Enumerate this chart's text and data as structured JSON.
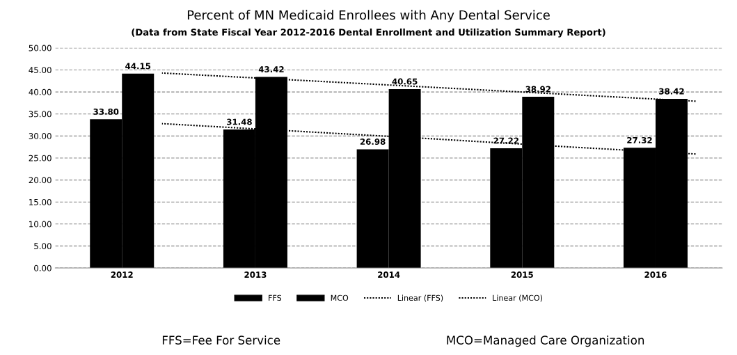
{
  "chart_data": {
    "type": "bar",
    "title": "Percent of MN Medicaid Enrollees with Any Dental Service",
    "subtitle": "(Data from State Fiscal Year 2012-2016 Dental Enrollment and Utilization Summary Report)",
    "categories": [
      "2012",
      "2013",
      "2014",
      "2015",
      "2016"
    ],
    "series": [
      {
        "name": "FFS",
        "color": "#000000",
        "values": [
          33.8,
          31.48,
          26.98,
          27.22,
          27.32
        ],
        "value_labels": [
          "33.80",
          "31.48",
          "26.98",
          "27.22",
          "27.32"
        ]
      },
      {
        "name": "MCO",
        "color": "#000000",
        "values": [
          44.15,
          43.42,
          40.65,
          38.92,
          38.42
        ],
        "value_labels": [
          "44.15",
          "43.42",
          "40.65",
          "38.92",
          "38.42"
        ]
      },
      {
        "name": "Linear (FFS)",
        "type": "line",
        "line_style": "dotted",
        "color": "#000000",
        "values": [
          32.8,
          31.1,
          29.4,
          27.6,
          25.9
        ]
      },
      {
        "name": "Linear (MCO)",
        "type": "line",
        "line_style": "dotted",
        "color": "#000000",
        "values": [
          44.3,
          42.7,
          41.1,
          39.5,
          37.9
        ]
      }
    ],
    "ylim": [
      0,
      50
    ],
    "yticks": [
      {
        "value": 0,
        "label": "0.00"
      },
      {
        "value": 5,
        "label": "5.00"
      },
      {
        "value": 10,
        "label": "10.00"
      },
      {
        "value": 15,
        "label": "15.00"
      },
      {
        "value": 20,
        "label": "20.00"
      },
      {
        "value": 25,
        "label": "25.00"
      },
      {
        "value": 30,
        "label": "30.00"
      },
      {
        "value": 35,
        "label": "35.00"
      },
      {
        "value": 40,
        "label": "40.00"
      },
      {
        "value": 45,
        "label": "45.00"
      },
      {
        "value": 50,
        "label": "50.00"
      }
    ],
    "grid": "y",
    "legend": "bottom",
    "annotations": [
      "FFS=Fee For Service",
      "MCO=Managed Care Organization"
    ]
  }
}
